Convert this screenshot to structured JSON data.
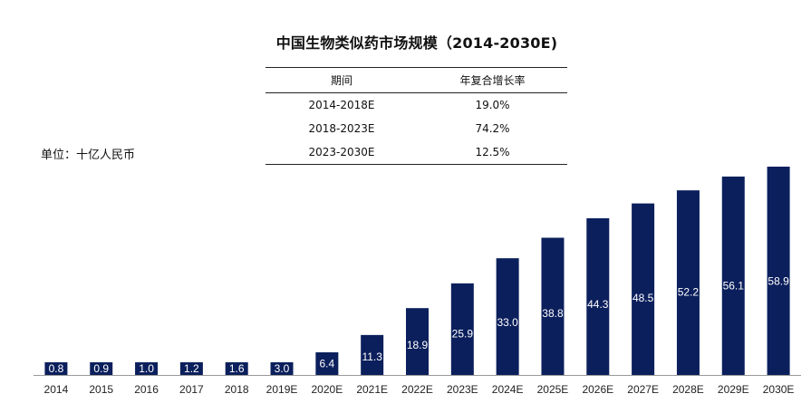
{
  "chart_data": {
    "type": "bar",
    "title": "中国生物类似药市场规模（2014-2030E)",
    "unit_label": "单位：十亿人民币",
    "categories": [
      "2014",
      "2015",
      "2016",
      "2017",
      "2018",
      "2019E",
      "2020E",
      "2021E",
      "2022E",
      "2023E",
      "2024E",
      "2025E",
      "2026E",
      "2027E",
      "2028E",
      "2029E",
      "2030E"
    ],
    "values": [
      0.8,
      0.9,
      1.0,
      1.2,
      1.6,
      3.0,
      6.4,
      11.3,
      18.9,
      25.9,
      33.0,
      38.8,
      44.3,
      48.5,
      52.2,
      56.1,
      58.9
    ],
    "value_labels": [
      "0.8",
      "0.9",
      "1.0",
      "1.2",
      "1.6",
      "3.0",
      "6.4",
      "11.3",
      "18.9",
      "25.9",
      "33.0",
      "38.8",
      "44.3",
      "48.5",
      "52.2",
      "56.1",
      "58.9"
    ],
    "ylim": [
      0,
      58.9
    ],
    "xlabel": "",
    "ylabel": "",
    "grid": false,
    "bar_color": "#0b1f5c",
    "axis_color": "#999999",
    "cagr_table": {
      "headers": [
        "期间",
        "年复合增长率"
      ],
      "rows": [
        [
          "2014-2018E",
          "19.0%"
        ],
        [
          "2018-2023E",
          "74.2%"
        ],
        [
          "2023-2030E",
          "12.5%"
        ]
      ]
    }
  }
}
